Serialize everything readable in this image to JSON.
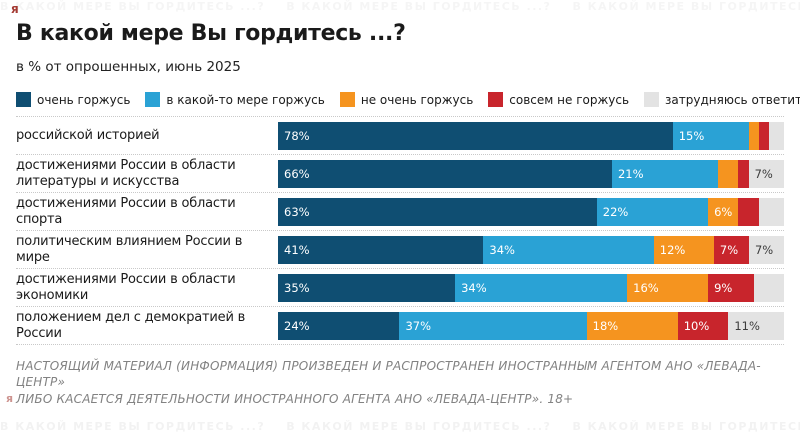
{
  "header": {
    "title": "В какой мере Вы гордитесь ...?",
    "subtitle": "в % от опрошенных, июнь 2025"
  },
  "legend": [
    {
      "label": "очень горжусь",
      "color": "#0f4e72"
    },
    {
      "label": "в какой-то мере горжусь",
      "color": "#2aa2d5"
    },
    {
      "label": "не очень горжусь",
      "color": "#f5941f"
    },
    {
      "label": "совсем не горжусь",
      "color": "#c8252c"
    },
    {
      "label": "затрудняюсь ответить",
      "color": "#e3e3e3"
    }
  ],
  "chart_data": {
    "type": "bar",
    "orientation": "horizontal",
    "stacked": true,
    "unit": "%",
    "xlim": [
      0,
      100
    ],
    "grid": false,
    "legend_position": "top",
    "colors": [
      "#0f4e72",
      "#2aa2d5",
      "#f5941f",
      "#c8252c",
      "#e3e3e3"
    ],
    "series_names": [
      "очень горжусь",
      "в какой-то мере горжусь",
      "не очень горжусь",
      "совсем не горжусь",
      "затрудняюсь ответить"
    ],
    "categories": [
      "российской историей",
      "достижениями России в области литературы и искусства",
      "достижениями России в области спорта",
      "политическим влиянием России в мире",
      "достижениями России в области экономики",
      "положением дел с демократией в России"
    ],
    "rows": [
      {
        "category": "российской историей",
        "values": [
          78,
          15,
          2,
          2,
          3
        ],
        "labels": [
          "78%",
          "15%",
          "",
          "",
          ""
        ]
      },
      {
        "category": "достижениями России в области литературы и искусства",
        "values": [
          66,
          21,
          4,
          2,
          7
        ],
        "labels": [
          "66%",
          "21%",
          "",
          "",
          "7%"
        ]
      },
      {
        "category": "достижениями России в области спорта",
        "values": [
          63,
          22,
          6,
          4,
          5
        ],
        "labels": [
          "63%",
          "22%",
          "6%",
          "",
          ""
        ]
      },
      {
        "category": "политическим влиянием России в мире",
        "values": [
          41,
          34,
          12,
          7,
          7
        ],
        "labels": [
          "41%",
          "34%",
          "12%",
          "7%",
          "7%"
        ]
      },
      {
        "category": "достижениями России в области экономики",
        "values": [
          35,
          34,
          16,
          9,
          6
        ],
        "labels": [
          "35%",
          "34%",
          "16%",
          "9%",
          ""
        ]
      },
      {
        "category": "положением дел с демократией в России",
        "values": [
          24,
          37,
          18,
          10,
          11
        ],
        "labels": [
          "24%",
          "37%",
          "18%",
          "10%",
          "11%"
        ]
      }
    ]
  },
  "footer": {
    "line1": "НАСТОЯЩИЙ МАТЕРИАЛ (ИНФОРМАЦИЯ) ПРОИЗВЕДЕН И РАСПРОСТРАНЕН ИНОСТРАННЫМ АГЕНТОМ АНО «ЛЕВАДА-ЦЕНТР»",
    "line2": "ЛИБО КАСАЕТСЯ ДЕЯТЕЛЬНОСТИ ИНОСТРАННОГО АГЕНТА АНО «ЛЕВАДА-ЦЕНТР». 18+"
  },
  "watermark": {
    "strip_text": "В КАКОЙ МЕРЕ ВЫ ГОРДИТЕСЬ ...?",
    "corner_glyph": "я"
  }
}
